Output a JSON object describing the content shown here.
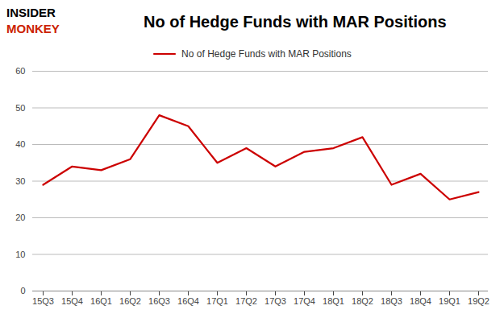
{
  "chart_data": {
    "type": "line",
    "title": "No of Hedge Funds with MAR Positions",
    "categories": [
      "15Q3",
      "15Q4",
      "16Q1",
      "16Q2",
      "16Q3",
      "16Q4",
      "17Q1",
      "17Q2",
      "17Q3",
      "17Q4",
      "18Q1",
      "18Q2",
      "18Q3",
      "18Q4",
      "19Q1",
      "19Q2"
    ],
    "series": [
      {
        "name": "No of Hedge Funds with MAR Positions",
        "color": "#cc0000",
        "values": [
          29,
          34,
          33,
          36,
          48,
          45,
          35,
          39,
          34,
          38,
          39,
          42,
          29,
          32,
          25,
          27
        ]
      }
    ],
    "ylim": [
      0,
      60
    ],
    "yticks": [
      0,
      10,
      20,
      30,
      40,
      50,
      60
    ],
    "grid": true,
    "legend": "top",
    "annotations": [
      {
        "text": "INSIDER",
        "color": "#000000"
      },
      {
        "text": "MONKEY",
        "color": "#cc2200"
      }
    ]
  }
}
